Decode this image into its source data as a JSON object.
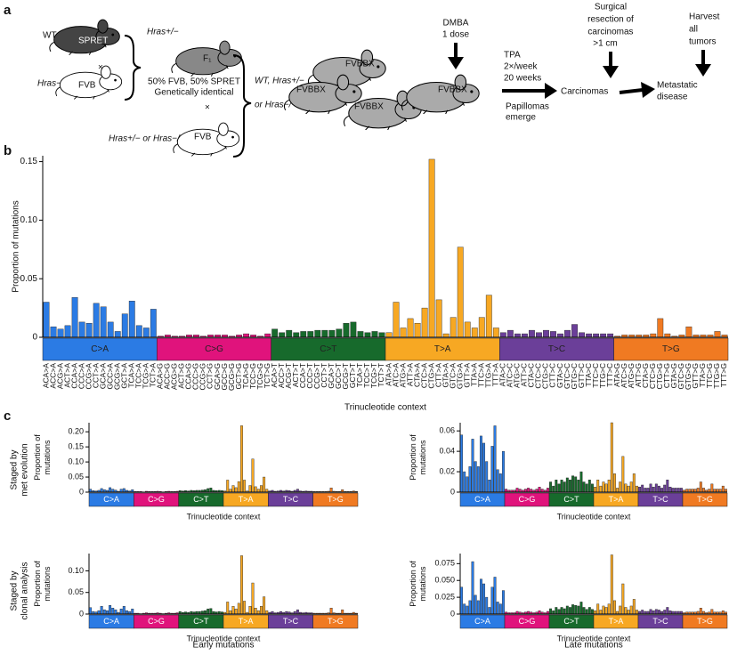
{
  "figure": {
    "panel_labels": [
      "a",
      "b",
      "c"
    ],
    "diagram": {
      "wt": "WT",
      "spret": "SPRET",
      "ko1": "Hras−/−",
      "fvb1": "FVB",
      "cross1": "×",
      "het": "Hras+/−",
      "f1": "F₁",
      "mix": "50% FVB, 50% SPRET",
      "identical": "Genetically identical",
      "cross2": "×",
      "genotype2": "Hras+/− or Hras−/−",
      "fvb2": "FVB",
      "wt_het": "WT, Hras+/−",
      "or_ko": "or Hras−/−",
      "bx1": "FVBBX",
      "bx2": "FVBBX",
      "bx3": "FVBBX",
      "bx4": "FVBBX",
      "dmba": "DMBA",
      "dose": "1 dose",
      "tpa": "TPA",
      "freq": "2×/week",
      "weeks": "20 weeks",
      "papillomas": "Papillomas",
      "emerge": "emerge",
      "carcinomas": "Carcinomas",
      "surgical": [
        "Surgical",
        "resection of",
        "carcinomas",
        ">1 cm"
      ],
      "metastatic": [
        "Metastatic",
        "disease"
      ],
      "harvest": [
        "Harvest",
        "all",
        "tumors"
      ]
    },
    "row_labels": [
      [
        "Staged by",
        "met evolution"
      ],
      [
        "Staged by",
        "clonal analysis"
      ]
    ],
    "column_labels": [
      "Early mutations",
      "Late mutations"
    ]
  },
  "chart_data": [
    {
      "type": "bar",
      "y_label": [
        "Proportion of mutations"
      ],
      "x_label": "Trinucleotide context",
      "groups": [
        "C>A",
        "C>G",
        "C>T",
        "T>A",
        "T>C",
        "T>G"
      ],
      "group_colors": [
        "#2b7be4",
        "#e0137c",
        "#176a2c",
        "#f7a823",
        "#6b3f99",
        "#f07a22"
      ],
      "categories": [
        "ACA>A",
        "ACC>A",
        "ACG>A",
        "ACT>A",
        "CCA>A",
        "CCC>A",
        "CCG>A",
        "CCT>A",
        "GCA>A",
        "GCC>A",
        "GCG>A",
        "GCT>A",
        "TCA>A",
        "TCC>A",
        "TCG>A",
        "TCT>A",
        "ACA>G",
        "ACC>G",
        "ACG>G",
        "ACT>G",
        "CCA>G",
        "CCC>G",
        "CCG>G",
        "CCT>G",
        "GCA>G",
        "GCC>G",
        "GCG>G",
        "GCT>G",
        "TCA>G",
        "TCC>G",
        "TCG>G",
        "TCT>G",
        "ACA>T",
        "ACC>T",
        "ACG>T",
        "ACT>T",
        "CCA>T",
        "CCC>T",
        "CCG>T",
        "CCT>T",
        "GCA>T",
        "GCC>T",
        "GCG>T",
        "GCT>T",
        "TCA>T",
        "TCC>T",
        "TCG>T",
        "TCT>T",
        "ATA>A",
        "ATC>A",
        "ATG>A",
        "ATT>A",
        "CTA>A",
        "CTC>A",
        "CTG>A",
        "CTT>A",
        "GTA>A",
        "GTC>A",
        "GTG>A",
        "GTT>A",
        "TTA>A",
        "TTC>A",
        "TTG>A",
        "TTT>A",
        "ATA>C",
        "ATC>C",
        "ATG>C",
        "ATT>C",
        "CTA>C",
        "CTC>C",
        "CTG>C",
        "CTT>C",
        "GTA>C",
        "GTC>C",
        "GTG>C",
        "GTT>C",
        "TTA>C",
        "TTC>C",
        "TTG>C",
        "TTT>C",
        "ATA>G",
        "ATC>G",
        "ATG>G",
        "ATT>G",
        "CTA>G",
        "CTC>G",
        "CTG>G",
        "CTT>G",
        "GTA>G",
        "GTC>G",
        "GTG>G",
        "GTT>G",
        "TTA>G",
        "TTC>G",
        "TTG>G",
        "TTT>G"
      ],
      "values": [
        0.03,
        0.009,
        0.007,
        0.01,
        0.034,
        0.013,
        0.012,
        0.029,
        0.026,
        0.013,
        0.005,
        0.02,
        0.031,
        0.01,
        0.008,
        0.024,
        0.001,
        0.002,
        0.001,
        0.001,
        0.002,
        0.002,
        0.001,
        0.002,
        0.002,
        0.002,
        0.001,
        0.002,
        0.003,
        0.002,
        0.001,
        0.003,
        0.007,
        0.004,
        0.006,
        0.004,
        0.005,
        0.005,
        0.006,
        0.006,
        0.006,
        0.007,
        0.012,
        0.013,
        0.005,
        0.004,
        0.005,
        0.004,
        0.004,
        0.03,
        0.008,
        0.016,
        0.012,
        0.025,
        0.152,
        0.032,
        0.003,
        0.017,
        0.077,
        0.013,
        0.008,
        0.017,
        0.036,
        0.008,
        0.004,
        0.006,
        0.003,
        0.003,
        0.006,
        0.004,
        0.006,
        0.005,
        0.003,
        0.006,
        0.011,
        0.004,
        0.003,
        0.003,
        0.003,
        0.003,
        0.001,
        0.002,
        0.002,
        0.002,
        0.002,
        0.003,
        0.016,
        0.003,
        0.001,
        0.002,
        0.009,
        0.002,
        0.002,
        0.002,
        0.005,
        0.002
      ],
      "ylim": [
        0,
        0.155
      ],
      "yticks": [
        0,
        0.05,
        {
          "value": 0.1,
          "label": "0.10"
        },
        0.15
      ]
    },
    {
      "type": "bar",
      "y_label": [
        "Proportion of",
        "mutations"
      ],
      "x_label": "Trinucleotide context",
      "groups": [
        "C>A",
        "C>G",
        "C>T",
        "T>A",
        "T>C",
        "T>G"
      ],
      "group_colors": [
        "#2b7be4",
        "#e0137c",
        "#176a2c",
        "#f7a823",
        "#6b3f99",
        "#f07a22"
      ],
      "values": [
        0.01,
        0.005,
        0.004,
        0.006,
        0.012,
        0.008,
        0.006,
        0.015,
        0.01,
        0.007,
        0.003,
        0.01,
        0.012,
        0.006,
        0.004,
        0.008,
        0.002,
        0.002,
        0.002,
        0.001,
        0.003,
        0.002,
        0.002,
        0.002,
        0.003,
        0.002,
        0.001,
        0.002,
        0.003,
        0.002,
        0.002,
        0.003,
        0.005,
        0.004,
        0.005,
        0.004,
        0.006,
        0.005,
        0.006,
        0.006,
        0.007,
        0.008,
        0.012,
        0.014,
        0.006,
        0.005,
        0.006,
        0.005,
        0.004,
        0.04,
        0.01,
        0.022,
        0.015,
        0.035,
        0.22,
        0.04,
        0.004,
        0.022,
        0.11,
        0.018,
        0.01,
        0.022,
        0.05,
        0.01,
        0.004,
        0.006,
        0.003,
        0.004,
        0.006,
        0.004,
        0.006,
        0.005,
        0.003,
        0.006,
        0.01,
        0.004,
        0.003,
        0.004,
        0.003,
        0.003,
        0.002,
        0.002,
        0.002,
        0.002,
        0.002,
        0.003,
        0.014,
        0.003,
        0.002,
        0.002,
        0.008,
        0.002,
        0.002,
        0.002,
        0.004,
        0.002
      ],
      "ylim": [
        0,
        0.23
      ],
      "yticks": [
        0,
        0.05,
        {
          "value": 0.1,
          "label": "0.10"
        },
        0.15,
        {
          "value": 0.2,
          "label": "0.20"
        }
      ]
    },
    {
      "type": "bar",
      "y_label": [
        "Proportion of",
        "mutations"
      ],
      "x_label": "Trinucleotide context",
      "groups": [
        "C>A",
        "C>G",
        "C>T",
        "T>A",
        "T>C",
        "T>G"
      ],
      "group_colors": [
        "#2b7be4",
        "#e0137c",
        "#176a2c",
        "#f7a823",
        "#6b3f99",
        "#f07a22"
      ],
      "values": [
        0.056,
        0.02,
        0.015,
        0.025,
        0.052,
        0.03,
        0.025,
        0.055,
        0.048,
        0.03,
        0.012,
        0.045,
        0.065,
        0.022,
        0.018,
        0.04,
        0.003,
        0.002,
        0.002,
        0.002,
        0.004,
        0.003,
        0.002,
        0.003,
        0.004,
        0.003,
        0.002,
        0.003,
        0.005,
        0.003,
        0.002,
        0.004,
        0.01,
        0.006,
        0.012,
        0.008,
        0.012,
        0.01,
        0.014,
        0.012,
        0.016,
        0.015,
        0.012,
        0.02,
        0.01,
        0.008,
        0.012,
        0.008,
        0.005,
        0.012,
        0.006,
        0.01,
        0.008,
        0.012,
        0.068,
        0.018,
        0.004,
        0.01,
        0.035,
        0.008,
        0.006,
        0.01,
        0.018,
        0.006,
        0.005,
        0.007,
        0.004,
        0.004,
        0.008,
        0.005,
        0.008,
        0.006,
        0.004,
        0.007,
        0.012,
        0.005,
        0.004,
        0.004,
        0.004,
        0.004,
        0.002,
        0.003,
        0.003,
        0.003,
        0.003,
        0.004,
        0.01,
        0.004,
        0.002,
        0.003,
        0.008,
        0.003,
        0.003,
        0.003,
        0.006,
        0.003
      ],
      "ylim": [
        0,
        0.068
      ],
      "yticks": [
        0,
        0.02,
        0.04,
        0.06
      ]
    },
    {
      "type": "bar",
      "y_label": [
        "Proportion of",
        "mutations"
      ],
      "x_label": "Trinucleotide context",
      "groups": [
        "C>A",
        "C>G",
        "C>T",
        "T>A",
        "T>C",
        "T>G"
      ],
      "group_colors": [
        "#2b7be4",
        "#e0137c",
        "#176a2c",
        "#f7a823",
        "#6b3f99",
        "#f07a22"
      ],
      "values": [
        0.015,
        0.006,
        0.005,
        0.008,
        0.018,
        0.01,
        0.008,
        0.02,
        0.014,
        0.01,
        0.004,
        0.012,
        0.018,
        0.008,
        0.006,
        0.012,
        0.002,
        0.002,
        0.001,
        0.002,
        0.003,
        0.002,
        0.002,
        0.002,
        0.003,
        0.002,
        0.001,
        0.002,
        0.003,
        0.002,
        0.002,
        0.003,
        0.006,
        0.004,
        0.005,
        0.004,
        0.006,
        0.005,
        0.006,
        0.006,
        0.007,
        0.008,
        0.012,
        0.013,
        0.006,
        0.005,
        0.006,
        0.005,
        0.004,
        0.028,
        0.008,
        0.018,
        0.012,
        0.025,
        0.135,
        0.03,
        0.004,
        0.018,
        0.072,
        0.014,
        0.008,
        0.018,
        0.04,
        0.008,
        0.004,
        0.006,
        0.003,
        0.004,
        0.006,
        0.004,
        0.006,
        0.005,
        0.003,
        0.006,
        0.01,
        0.004,
        0.003,
        0.004,
        0.003,
        0.003,
        0.002,
        0.002,
        0.002,
        0.002,
        0.002,
        0.003,
        0.014,
        0.003,
        0.002,
        0.002,
        0.01,
        0.002,
        0.002,
        0.002,
        0.004,
        0.002
      ],
      "ylim": [
        0,
        0.14
      ],
      "yticks": [
        0,
        0.05,
        {
          "value": 0.1,
          "label": "0.10"
        }
      ]
    },
    {
      "type": "bar",
      "y_label": [
        "Proportion of",
        "mutations"
      ],
      "x_label": "Trinucleotide context",
      "groups": [
        "C>A",
        "C>G",
        "C>T",
        "T>A",
        "T>C",
        "T>G"
      ],
      "group_colors": [
        "#2b7be4",
        "#e0137c",
        "#176a2c",
        "#f7a823",
        "#6b3f99",
        "#f07a22"
      ],
      "values": [
        0.04,
        0.015,
        0.012,
        0.02,
        0.078,
        0.028,
        0.02,
        0.052,
        0.045,
        0.025,
        0.01,
        0.04,
        0.055,
        0.018,
        0.015,
        0.035,
        0.003,
        0.002,
        0.002,
        0.002,
        0.004,
        0.003,
        0.002,
        0.003,
        0.004,
        0.003,
        0.002,
        0.003,
        0.005,
        0.003,
        0.002,
        0.004,
        0.008,
        0.005,
        0.01,
        0.007,
        0.01,
        0.008,
        0.012,
        0.01,
        0.014,
        0.013,
        0.012,
        0.018,
        0.01,
        0.007,
        0.01,
        0.007,
        0.005,
        0.015,
        0.006,
        0.012,
        0.01,
        0.015,
        0.088,
        0.02,
        0.004,
        0.012,
        0.045,
        0.01,
        0.006,
        0.012,
        0.022,
        0.006,
        0.004,
        0.006,
        0.004,
        0.004,
        0.007,
        0.005,
        0.007,
        0.006,
        0.004,
        0.006,
        0.01,
        0.005,
        0.004,
        0.004,
        0.004,
        0.004,
        0.002,
        0.003,
        0.003,
        0.003,
        0.003,
        0.004,
        0.009,
        0.004,
        0.002,
        0.003,
        0.007,
        0.003,
        0.003,
        0.003,
        0.005,
        0.003
      ],
      "ylim": [
        0,
        0.09
      ],
      "yticks": [
        0,
        {
          "value": 0.025,
          "label": "0.025"
        },
        {
          "value": 0.05,
          "label": "0.050"
        },
        0.075
      ]
    }
  ]
}
